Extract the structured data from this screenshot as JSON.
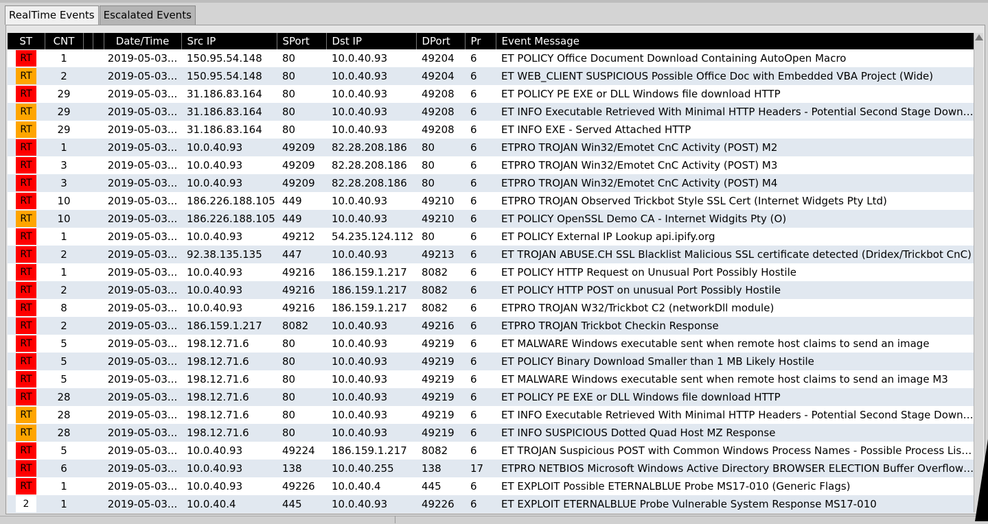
{
  "tabs": [
    {
      "label": "RealTime Events",
      "active": true
    },
    {
      "label": "Escalated Events",
      "active": false
    }
  ],
  "table": {
    "columns": [
      "ST",
      "CNT",
      "",
      "",
      "Date/Time",
      "Src IP",
      "SPort",
      "Dst IP",
      "DPort",
      "Pr",
      "Event Message"
    ],
    "colors": {
      "RT_red": "#ff0000",
      "RT_orange": "#ffa500",
      "header_bg": "#000000",
      "row_alt": "#e1e8f0"
    },
    "rows": [
      {
        "st": "RT",
        "level": "red",
        "cnt": "1",
        "dt": "2019-05-03...",
        "src": "150.95.54.148",
        "sport": "80",
        "dst": "10.0.40.93",
        "dport": "49204",
        "pr": "6",
        "msg": "ET POLICY Office Document Download Containing AutoOpen Macro"
      },
      {
        "st": "RT",
        "level": "orange",
        "cnt": "2",
        "dt": "2019-05-03...",
        "src": "150.95.54.148",
        "sport": "80",
        "dst": "10.0.40.93",
        "dport": "49204",
        "pr": "6",
        "msg": "ET WEB_CLIENT SUSPICIOUS Possible Office Doc with Embedded VBA Project (Wide)"
      },
      {
        "st": "RT",
        "level": "red",
        "cnt": "29",
        "dt": "2019-05-03...",
        "src": "31.186.83.164",
        "sport": "80",
        "dst": "10.0.40.93",
        "dport": "49208",
        "pr": "6",
        "msg": "ET POLICY PE EXE or DLL Windows file download HTTP"
      },
      {
        "st": "RT",
        "level": "orange",
        "cnt": "29",
        "dt": "2019-05-03...",
        "src": "31.186.83.164",
        "sport": "80",
        "dst": "10.0.40.93",
        "dport": "49208",
        "pr": "6",
        "msg": "ET INFO Executable Retrieved With Minimal HTTP Headers - Potential Second Stage Download"
      },
      {
        "st": "RT",
        "level": "orange",
        "cnt": "29",
        "dt": "2019-05-03...",
        "src": "31.186.83.164",
        "sport": "80",
        "dst": "10.0.40.93",
        "dport": "49208",
        "pr": "6",
        "msg": "ET INFO EXE - Served Attached HTTP"
      },
      {
        "st": "RT",
        "level": "red",
        "cnt": "1",
        "dt": "2019-05-03...",
        "src": "10.0.40.93",
        "sport": "49209",
        "dst": "82.28.208.186",
        "dport": "80",
        "pr": "6",
        "msg": "ETPRO TROJAN Win32/Emotet CnC Activity (POST) M2"
      },
      {
        "st": "RT",
        "level": "red",
        "cnt": "3",
        "dt": "2019-05-03...",
        "src": "10.0.40.93",
        "sport": "49209",
        "dst": "82.28.208.186",
        "dport": "80",
        "pr": "6",
        "msg": "ETPRO TROJAN Win32/Emotet CnC Activity (POST) M3"
      },
      {
        "st": "RT",
        "level": "red",
        "cnt": "3",
        "dt": "2019-05-03...",
        "src": "10.0.40.93",
        "sport": "49209",
        "dst": "82.28.208.186",
        "dport": "80",
        "pr": "6",
        "msg": "ETPRO TROJAN Win32/Emotet CnC Activity (POST) M4"
      },
      {
        "st": "RT",
        "level": "red",
        "cnt": "10",
        "dt": "2019-05-03...",
        "src": "186.226.188.105",
        "sport": "449",
        "dst": "10.0.40.93",
        "dport": "49210",
        "pr": "6",
        "msg": "ETPRO TROJAN Observed Trickbot Style SSL Cert (Internet Widgets Pty Ltd)"
      },
      {
        "st": "RT",
        "level": "orange",
        "cnt": "10",
        "dt": "2019-05-03...",
        "src": "186.226.188.105",
        "sport": "449",
        "dst": "10.0.40.93",
        "dport": "49210",
        "pr": "6",
        "msg": "ET POLICY OpenSSL Demo CA - Internet Widgits Pty (O)"
      },
      {
        "st": "RT",
        "level": "red",
        "cnt": "1",
        "dt": "2019-05-03...",
        "src": "10.0.40.93",
        "sport": "49212",
        "dst": "54.235.124.112",
        "dport": "80",
        "pr": "6",
        "msg": "ET POLICY External IP Lookup api.ipify.org"
      },
      {
        "st": "RT",
        "level": "red",
        "cnt": "2",
        "dt": "2019-05-03...",
        "src": "92.38.135.135",
        "sport": "447",
        "dst": "10.0.40.93",
        "dport": "49213",
        "pr": "6",
        "msg": "ET TROJAN ABUSE.CH SSL Blacklist Malicious SSL certificate detected (Dridex/Trickbot CnC)"
      },
      {
        "st": "RT",
        "level": "red",
        "cnt": "1",
        "dt": "2019-05-03...",
        "src": "10.0.40.93",
        "sport": "49216",
        "dst": "186.159.1.217",
        "dport": "8082",
        "pr": "6",
        "msg": "ET POLICY HTTP Request on Unusual Port Possibly Hostile"
      },
      {
        "st": "RT",
        "level": "red",
        "cnt": "2",
        "dt": "2019-05-03...",
        "src": "10.0.40.93",
        "sport": "49216",
        "dst": "186.159.1.217",
        "dport": "8082",
        "pr": "6",
        "msg": "ET POLICY HTTP POST on unusual Port Possibly Hostile"
      },
      {
        "st": "RT",
        "level": "red",
        "cnt": "8",
        "dt": "2019-05-03...",
        "src": "10.0.40.93",
        "sport": "49216",
        "dst": "186.159.1.217",
        "dport": "8082",
        "pr": "6",
        "msg": "ETPRO TROJAN W32/Trickbot C2 (networkDll module)"
      },
      {
        "st": "RT",
        "level": "red",
        "cnt": "2",
        "dt": "2019-05-03...",
        "src": "186.159.1.217",
        "sport": "8082",
        "dst": "10.0.40.93",
        "dport": "49216",
        "pr": "6",
        "msg": "ETPRO TROJAN Trickbot Checkin Response"
      },
      {
        "st": "RT",
        "level": "red",
        "cnt": "5",
        "dt": "2019-05-03...",
        "src": "198.12.71.6",
        "sport": "80",
        "dst": "10.0.40.93",
        "dport": "49219",
        "pr": "6",
        "msg": "ET MALWARE Windows executable sent when remote host claims to send an image"
      },
      {
        "st": "RT",
        "level": "red",
        "cnt": "5",
        "dt": "2019-05-03...",
        "src": "198.12.71.6",
        "sport": "80",
        "dst": "10.0.40.93",
        "dport": "49219",
        "pr": "6",
        "msg": "ET POLICY Binary Download Smaller than 1 MB Likely Hostile"
      },
      {
        "st": "RT",
        "level": "red",
        "cnt": "5",
        "dt": "2019-05-03...",
        "src": "198.12.71.6",
        "sport": "80",
        "dst": "10.0.40.93",
        "dport": "49219",
        "pr": "6",
        "msg": "ET MALWARE Windows executable sent when remote host claims to send an image M3"
      },
      {
        "st": "RT",
        "level": "red",
        "cnt": "28",
        "dt": "2019-05-03...",
        "src": "198.12.71.6",
        "sport": "80",
        "dst": "10.0.40.93",
        "dport": "49219",
        "pr": "6",
        "msg": "ET POLICY PE EXE or DLL Windows file download HTTP"
      },
      {
        "st": "RT",
        "level": "orange",
        "cnt": "28",
        "dt": "2019-05-03...",
        "src": "198.12.71.6",
        "sport": "80",
        "dst": "10.0.40.93",
        "dport": "49219",
        "pr": "6",
        "msg": "ET INFO Executable Retrieved With Minimal HTTP Headers - Potential Second Stage Download"
      },
      {
        "st": "RT",
        "level": "orange",
        "cnt": "28",
        "dt": "2019-05-03...",
        "src": "198.12.71.6",
        "sport": "80",
        "dst": "10.0.40.93",
        "dport": "49219",
        "pr": "6",
        "msg": "ET INFO SUSPICIOUS Dotted Quad Host MZ Response"
      },
      {
        "st": "RT",
        "level": "red",
        "cnt": "5",
        "dt": "2019-05-03...",
        "src": "10.0.40.93",
        "sport": "49224",
        "dst": "186.159.1.217",
        "dport": "8082",
        "pr": "6",
        "msg": "ET TROJAN Suspicious POST with Common Windows Process Names - Possible Process List Exfi..."
      },
      {
        "st": "RT",
        "level": "red",
        "cnt": "6",
        "dt": "2019-05-03...",
        "src": "10.0.40.93",
        "sport": "138",
        "dst": "10.0.40.255",
        "dport": "138",
        "pr": "17",
        "msg": "ETPRO NETBIOS Microsoft Windows Active Directory BROWSER ELECTION Buffer Overflow Inb..."
      },
      {
        "st": "RT",
        "level": "red",
        "cnt": "1",
        "dt": "2019-05-03...",
        "src": "10.0.40.93",
        "sport": "49226",
        "dst": "10.0.40.4",
        "dport": "445",
        "pr": "6",
        "msg": "ET EXPLOIT Possible ETERNALBLUE Probe MS17-010 (Generic Flags)"
      },
      {
        "st": "2",
        "level": "plain",
        "cnt": "1",
        "dt": "2019-05-03...",
        "src": "10.0.40.4",
        "sport": "445",
        "dst": "10.0.40.93",
        "dport": "49226",
        "pr": "6",
        "msg": "ET EXPLOIT ETERNALBLUE Probe Vulnerable System Response MS17-010"
      }
    ]
  }
}
